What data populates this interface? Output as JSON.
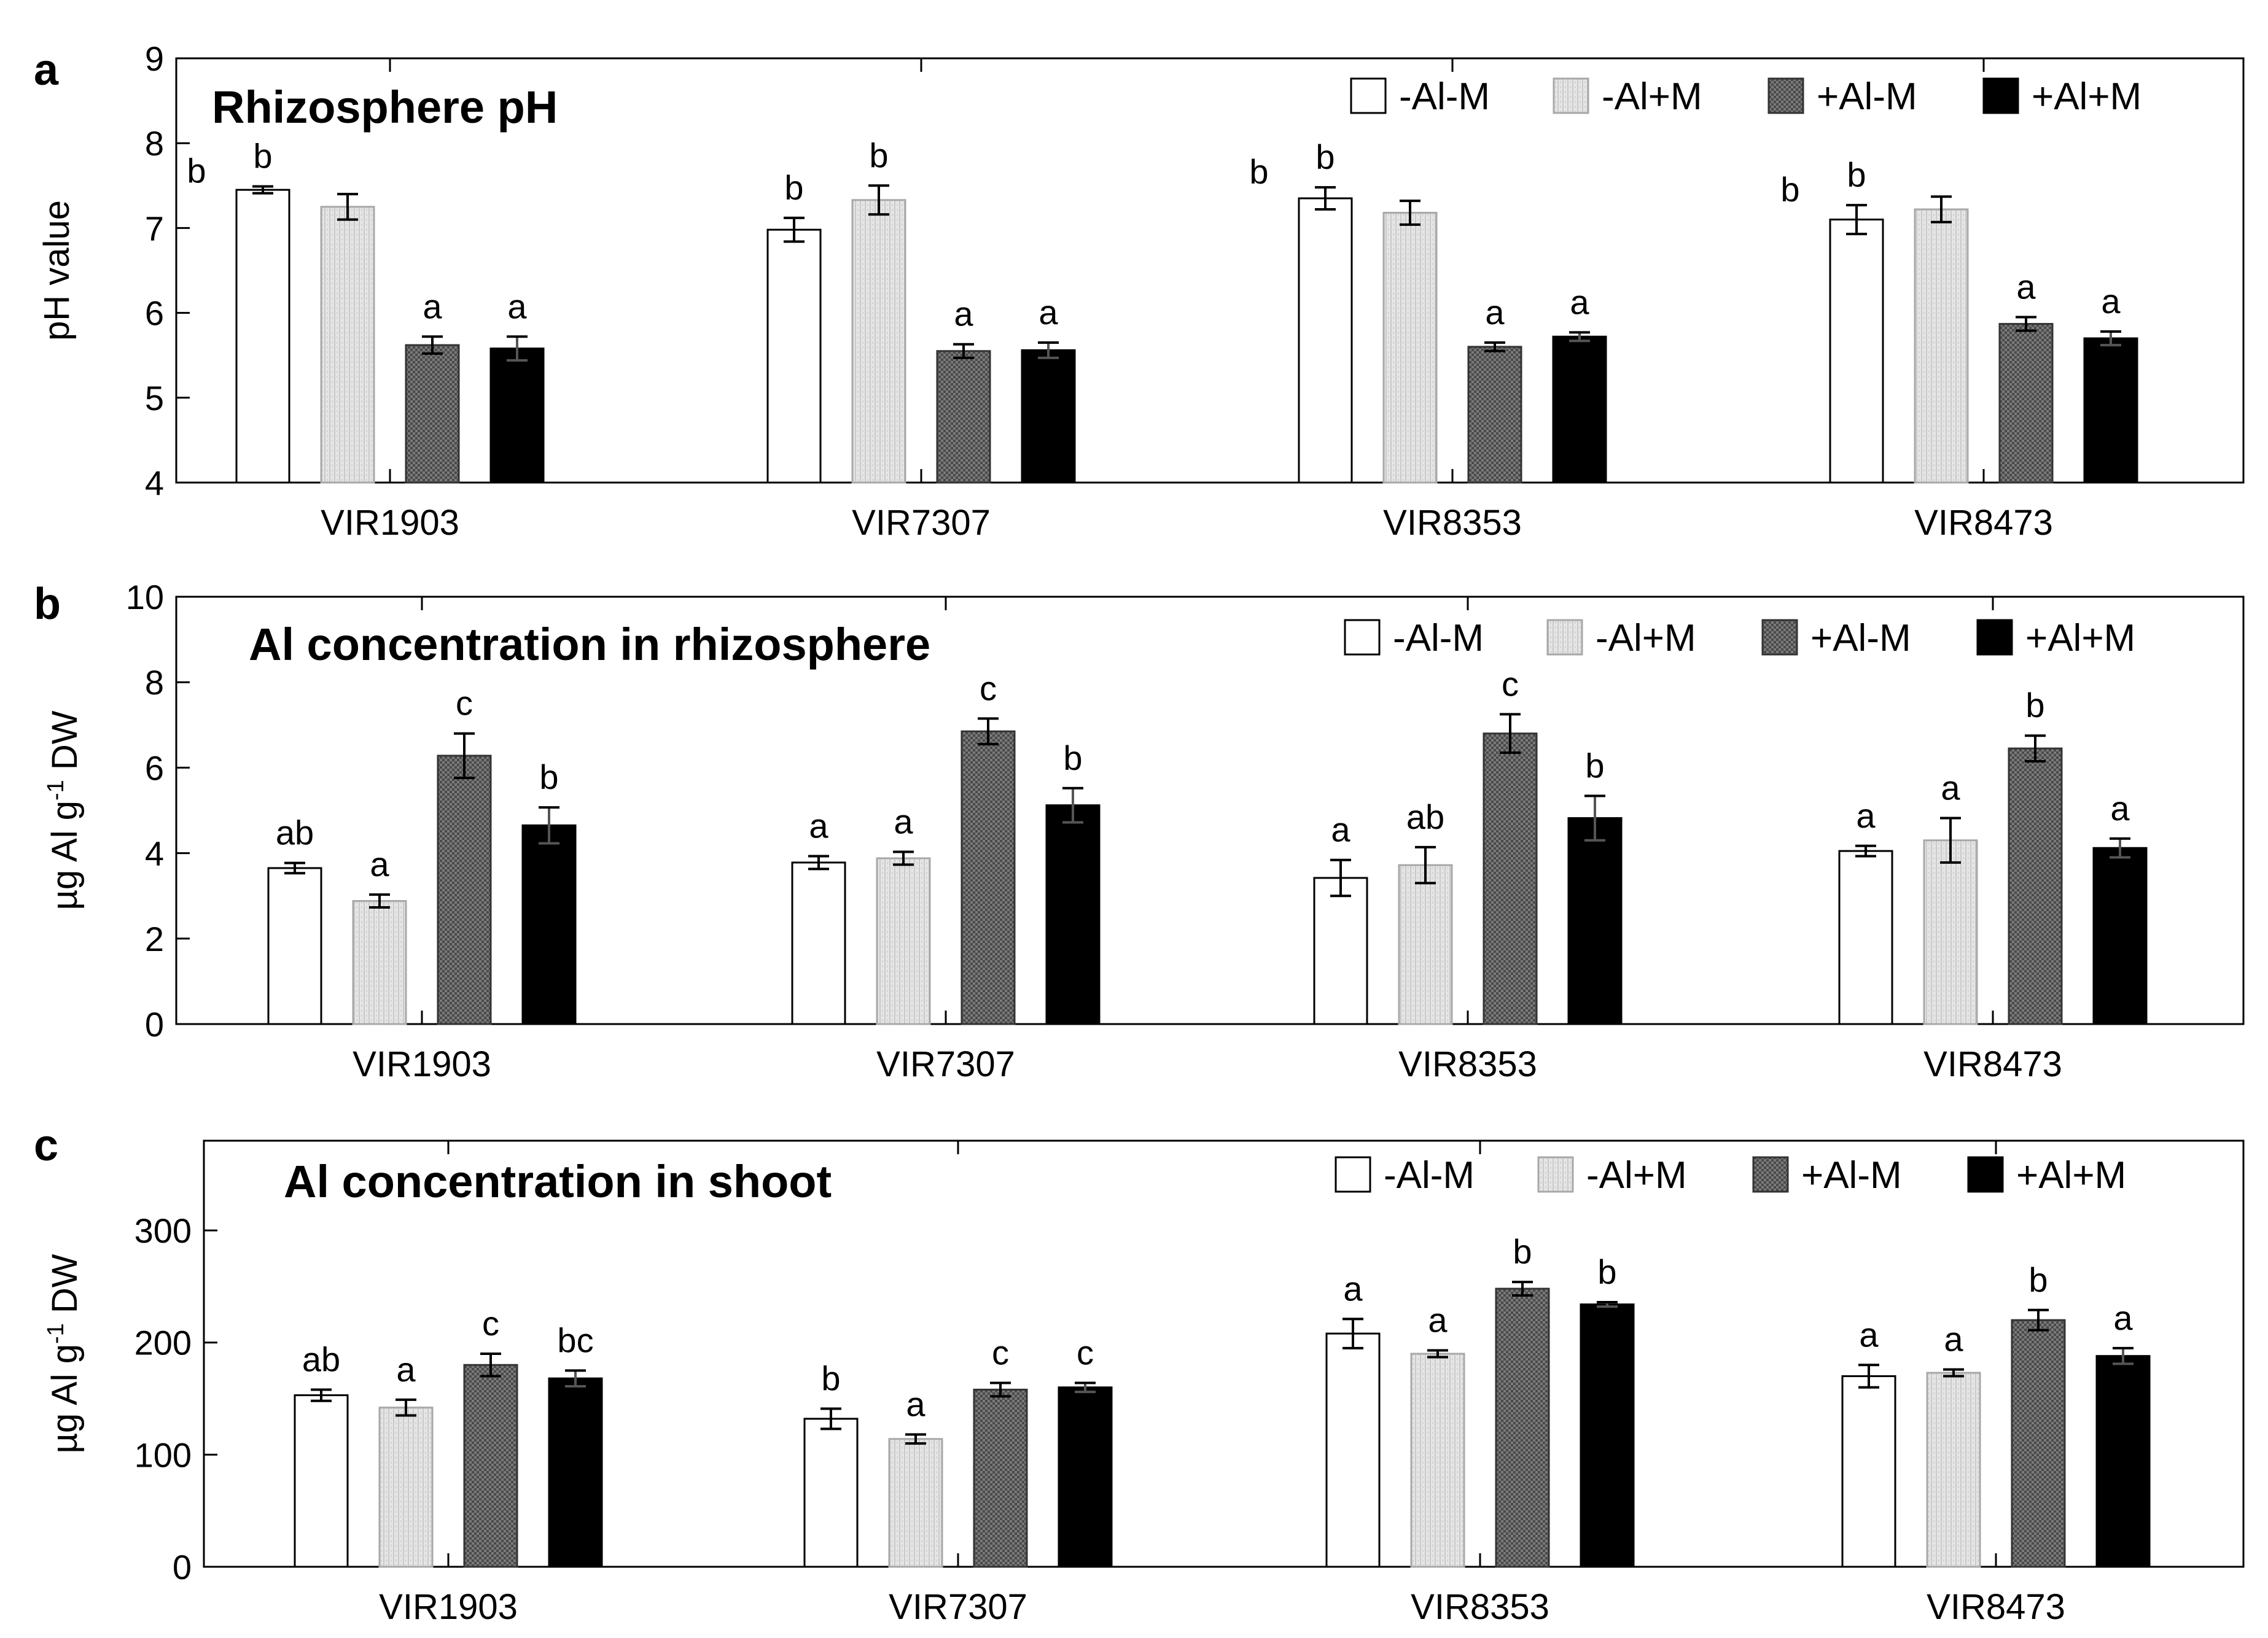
{
  "chart_data": [
    {
      "panel": "a",
      "type": "bar",
      "title": "Rhizosphere pH",
      "ylabel": "pH value",
      "ylabel_sup": "",
      "ylabel_tail": "",
      "ylim": [
        4,
        9
      ],
      "yticks": [
        4,
        5,
        6,
        7,
        8,
        9
      ],
      "categories": [
        "VIR1903",
        "VIR7307",
        "VIR8353",
        "VIR8473"
      ],
      "legend": [
        "-Al-M",
        "-Al+M",
        "+Al-M",
        "+Al+M"
      ],
      "series": [
        {
          "name": "-Al-M",
          "values": [
            7.45,
            6.98,
            7.35,
            7.1
          ],
          "errors": [
            0.04,
            0.14,
            0.13,
            0.17
          ],
          "labels": [
            "b",
            "b",
            "b",
            "b"
          ]
        },
        {
          "name": "-Al+M",
          "values": [
            7.25,
            7.33,
            7.18,
            7.22
          ],
          "errors": [
            0.15,
            0.17,
            0.14,
            0.15
          ],
          "labels": [
            "",
            "b",
            "",
            ""
          ]
        },
        {
          "name": "+Al-M",
          "values": [
            5.62,
            5.55,
            5.6,
            5.87
          ],
          "errors": [
            0.1,
            0.08,
            0.05,
            0.08
          ],
          "labels": [
            "a",
            "a",
            "a",
            "a"
          ]
        },
        {
          "name": "+Al+M",
          "values": [
            5.58,
            5.56,
            5.72,
            5.7
          ],
          "errors": [
            0.14,
            0.09,
            0.05,
            0.08
          ],
          "labels": [
            "a",
            "a",
            "a",
            "a"
          ]
        }
      ],
      "extra_labels": [
        {
          "group": 0,
          "text": "b"
        },
        {
          "group": 2,
          "text": "b"
        },
        {
          "group": 3,
          "text": "b"
        }
      ]
    },
    {
      "panel": "b",
      "type": "bar",
      "title": "Al concentration in rhizosphere",
      "ylabel": "µg Al g",
      "ylabel_sup": "-1",
      "ylabel_tail": " DW",
      "ylim": [
        0,
        10
      ],
      "yticks": [
        0,
        2,
        4,
        6,
        8,
        10
      ],
      "categories": [
        "VIR1903",
        "VIR7307",
        "VIR8353",
        "VIR8473"
      ],
      "legend": [
        "-Al-M",
        "-Al+M",
        "+Al-M",
        "+Al+M"
      ],
      "series": [
        {
          "name": "-Al-M",
          "values": [
            3.65,
            3.78,
            3.42,
            4.05
          ],
          "errors": [
            0.12,
            0.15,
            0.42,
            0.12
          ],
          "labels": [
            "ab",
            "a",
            "a",
            "a"
          ]
        },
        {
          "name": "-Al+M",
          "values": [
            2.88,
            3.88,
            3.72,
            4.3
          ],
          "errors": [
            0.15,
            0.15,
            0.42,
            0.52
          ],
          "labels": [
            "a",
            "a",
            "ab",
            "a"
          ]
        },
        {
          "name": "+Al-M",
          "values": [
            6.28,
            6.85,
            6.8,
            6.45
          ],
          "errors": [
            0.52,
            0.3,
            0.45,
            0.3
          ],
          "labels": [
            "c",
            "c",
            "c",
            "b"
          ]
        },
        {
          "name": "+Al+M",
          "values": [
            4.65,
            5.12,
            4.82,
            4.12
          ],
          "errors": [
            0.42,
            0.4,
            0.52,
            0.22
          ],
          "labels": [
            "b",
            "b",
            "b",
            "a"
          ]
        }
      ],
      "extra_labels": []
    },
    {
      "panel": "c",
      "type": "bar",
      "title": "Al concentration in shoot",
      "ylabel": "µg Al g",
      "ylabel_sup": "-1",
      "ylabel_tail": " DW",
      "ylim": [
        0,
        380
      ],
      "yticks": [
        0,
        100,
        200,
        300
      ],
      "categories": [
        "VIR1903",
        "VIR7307",
        "VIR8353",
        "VIR8473"
      ],
      "legend": [
        "-Al-M",
        "-Al+M",
        "+Al-M",
        "+Al+M"
      ],
      "series": [
        {
          "name": "-Al-M",
          "values": [
            153,
            132,
            208,
            170
          ],
          "errors": [
            5,
            9,
            13,
            10
          ],
          "labels": [
            "ab",
            "b",
            "a",
            "a"
          ]
        },
        {
          "name": "-Al+M",
          "values": [
            142,
            114,
            190,
            173
          ],
          "errors": [
            7,
            4,
            3,
            3
          ],
          "labels": [
            "a",
            "a",
            "a",
            "a"
          ]
        },
        {
          "name": "+Al-M",
          "values": [
            180,
            158,
            248,
            220
          ],
          "errors": [
            10,
            6,
            6,
            9
          ],
          "labels": [
            "c",
            "c",
            "b",
            "b"
          ]
        },
        {
          "name": "+Al+M",
          "values": [
            168,
            160,
            234,
            188
          ],
          "errors": [
            7,
            4,
            2,
            7
          ],
          "labels": [
            "bc",
            "c",
            "b",
            "a"
          ]
        }
      ],
      "extra_labels": []
    }
  ]
}
